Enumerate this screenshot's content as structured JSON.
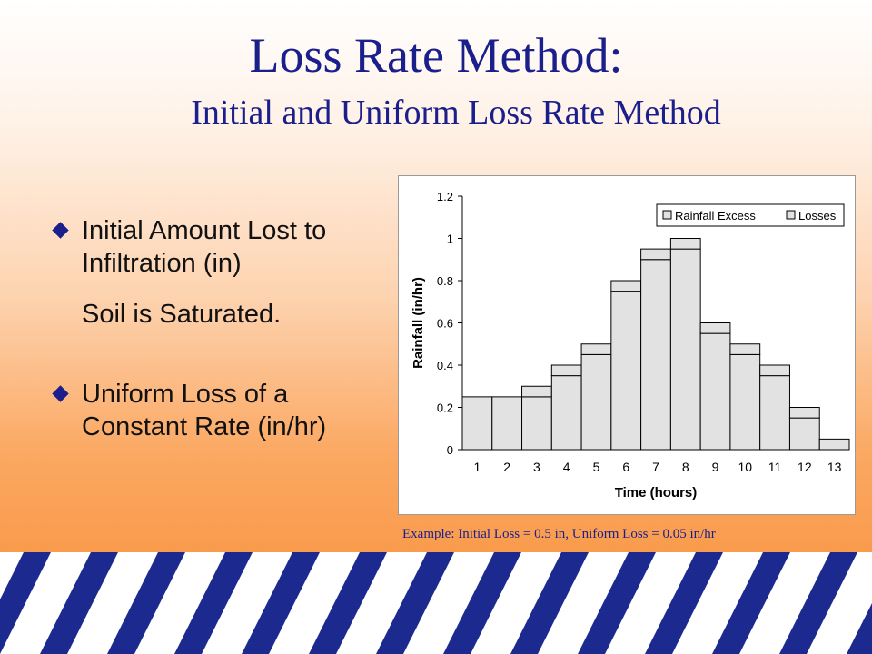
{
  "slide": {
    "title": "Loss Rate Method:",
    "subtitle": "Initial and Uniform Loss Rate Method",
    "bullets": [
      {
        "text": "Initial Amount Lost to Infiltration (in)",
        "note": "Soil is Saturated."
      },
      {
        "text": "Uniform Loss of a Constant Rate (in/hr)"
      }
    ],
    "caption": "Example: Initial Loss = 0.5 in, Uniform Loss = 0.05 in/hr",
    "colors": {
      "title": "#1b1f8c",
      "bullet": "#1b1f8c",
      "stripe_blue": "#1c2a8f",
      "stripe_white": "#ffffff",
      "bar_fill": "#e2e2e2"
    }
  },
  "chart_data": {
    "type": "bar",
    "stacked": true,
    "categories": [
      "1",
      "2",
      "3",
      "4",
      "5",
      "6",
      "7",
      "8",
      "9",
      "10",
      "11",
      "12",
      "13"
    ],
    "series": [
      {
        "name": "Rainfall Excess",
        "values": [
          0,
          0,
          0.25,
          0.35,
          0.45,
          0.75,
          0.9,
          0.95,
          0.55,
          0.45,
          0.35,
          0.15,
          0
        ]
      },
      {
        "name": "Losses",
        "values": [
          0.25,
          0.25,
          0.05,
          0.05,
          0.05,
          0.05,
          0.05,
          0.05,
          0.05,
          0.05,
          0.05,
          0.05,
          0.05
        ]
      }
    ],
    "xlabel": "Time (hours)",
    "ylabel": "Rainfall (in/hr)",
    "ylim": [
      0,
      1.2
    ],
    "yticks": [
      "0",
      "0.2",
      "0.4",
      "0.6",
      "0.8",
      "1",
      "1.2"
    ],
    "grid": false,
    "legend": "top-right"
  }
}
